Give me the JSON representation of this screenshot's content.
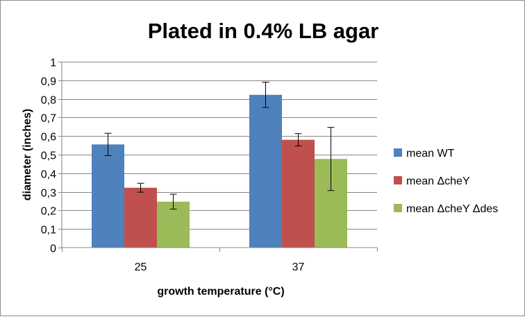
{
  "chart_data": {
    "type": "bar",
    "title": "Plated in 0.4% LB agar",
    "xlabel": "growth temperature (°C)",
    "ylabel": "diameter (inches)",
    "categories": [
      "25",
      "37"
    ],
    "ylim": [
      0,
      1
    ],
    "yticks": [
      0,
      0.1,
      0.2,
      0.3,
      0.4,
      0.5,
      0.6,
      0.7,
      0.8,
      0.9,
      1
    ],
    "ytick_labels": [
      "0",
      "0,1",
      "0,2",
      "0,3",
      "0,4",
      "0,5",
      "0,6",
      "0,7",
      "0,8",
      "0,9",
      "1"
    ],
    "grid": true,
    "legend_position": "right",
    "series": [
      {
        "name": "mean WT",
        "color": "#4f81bd",
        "values": [
          0.555,
          0.822
        ],
        "errors": [
          0.06,
          0.068
        ]
      },
      {
        "name": "mean ΔcheY",
        "color": "#c0504d",
        "values": [
          0.322,
          0.58
        ],
        "errors": [
          0.024,
          0.033
        ]
      },
      {
        "name": "mean ΔcheY Δdes",
        "color": "#9bbb59",
        "values": [
          0.247,
          0.477
        ],
        "errors": [
          0.04,
          0.17
        ]
      }
    ]
  }
}
